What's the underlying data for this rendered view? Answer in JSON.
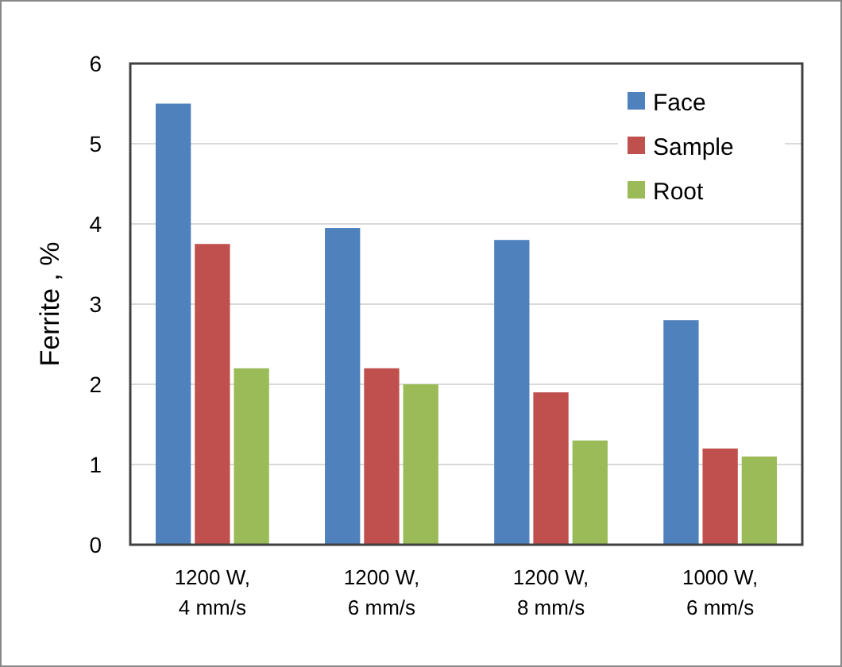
{
  "chart_data": {
    "type": "bar",
    "ylabel": "Ferrite , %",
    "categories": [
      "1200 W,\n4 mm/s",
      "1200 W,\n6 mm/s",
      "1200 W,\n8 mm/s",
      "1000 W,\n6 mm/s"
    ],
    "series": [
      {
        "name": "Face",
        "color": "#4f81bd",
        "values": [
          5.5,
          3.95,
          3.8,
          2.8
        ]
      },
      {
        "name": "Sample",
        "color": "#c0504d",
        "values": [
          3.75,
          2.2,
          1.9,
          1.2
        ]
      },
      {
        "name": "Root",
        "color": "#9bbb59",
        "values": [
          2.2,
          2.0,
          1.3,
          1.1
        ]
      }
    ],
    "ylim": [
      0,
      6
    ],
    "yticks": [
      0,
      1,
      2,
      3,
      4,
      5,
      6
    ],
    "grid": "y",
    "legend": "top right"
  }
}
